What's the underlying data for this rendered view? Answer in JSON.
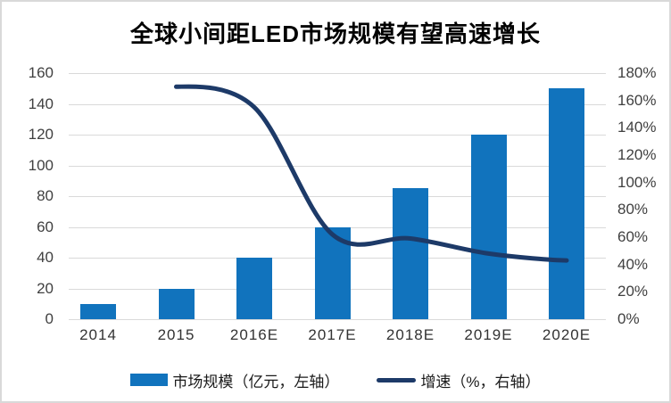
{
  "title": "全球小间距LED市场规模有望高速增长",
  "colors": {
    "bar": "#1173bd",
    "line": "#1d3a68",
    "grid": "#d9d9d9",
    "tick_text": "#404040",
    "title_text": "#000000",
    "frame_border": "#d9d9d9"
  },
  "chart_data": {
    "type": "bar",
    "subtype": "combo-bar-line-dual-axis",
    "title": "全球小间距LED市场规模有望高速增长",
    "categories": [
      "2014",
      "2015",
      "2016E",
      "2017E",
      "2018E",
      "2019E",
      "2020E"
    ],
    "series": [
      {
        "name": "市场规模（亿元，左轴）",
        "type": "bar",
        "axis": "left",
        "color": "#1173bd",
        "values": [
          10,
          20,
          40,
          60,
          85,
          120,
          150
        ]
      },
      {
        "name": "增速（%，右轴）",
        "type": "line",
        "axis": "right",
        "color": "#1d3a68",
        "values": [
          null,
          170,
          155,
          62,
          59,
          48,
          43
        ]
      }
    ],
    "left_axis": {
      "min": 0,
      "max": 160,
      "step": 20,
      "tick_labels": [
        "160",
        "140",
        "120",
        "100",
        "80",
        "60",
        "40",
        "20",
        "0"
      ]
    },
    "right_axis": {
      "min": 0,
      "max": 180,
      "step": 20,
      "tick_labels": [
        "180%",
        "160%",
        "140%",
        "120%",
        "100%",
        "80%",
        "60%",
        "40%",
        "20%",
        "0%"
      ]
    },
    "grid": true,
    "legend_position": "bottom",
    "xlabel": "",
    "ylabel_left": "亿元",
    "ylabel_right": "%"
  }
}
